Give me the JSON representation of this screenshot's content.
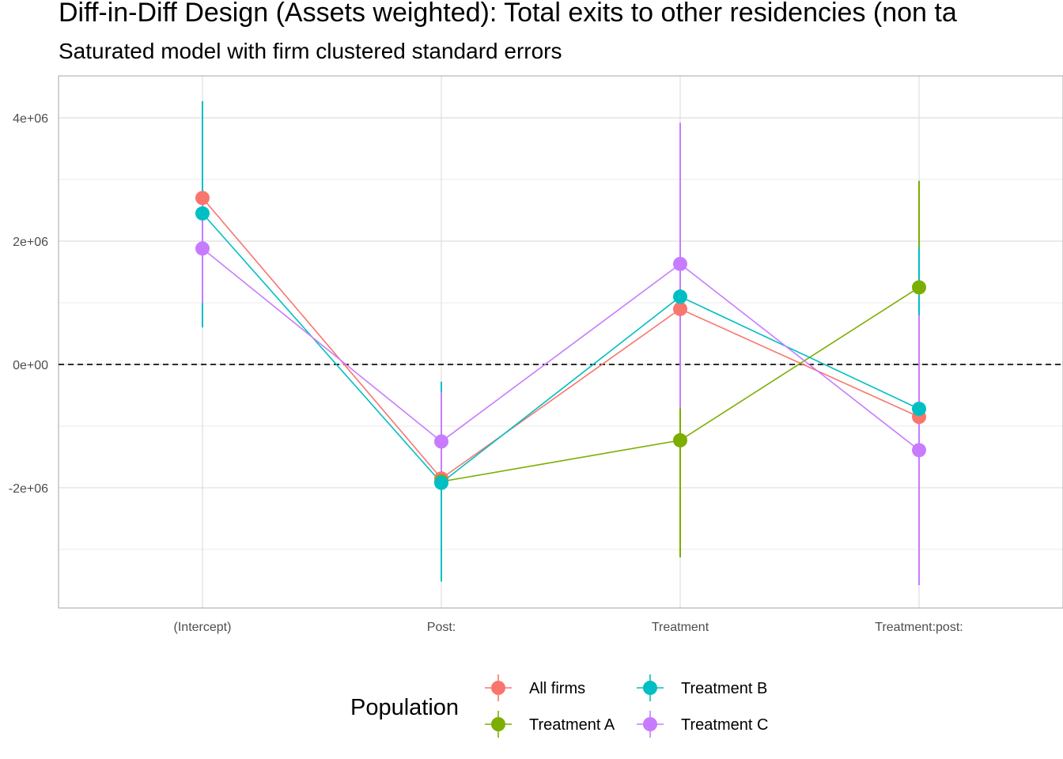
{
  "chart_data": {
    "type": "scatter",
    "title": "Diff-in-Diff Design (Assets weighted): Total exits to other residencies (non ta",
    "subtitle": "Saturated model with firm clustered standard errors",
    "xlabel": "",
    "ylabel": "",
    "categories": [
      "(Intercept)",
      "Post:",
      "Treatment",
      "Treatment:post:"
    ],
    "y_ticks": [
      -2000000,
      0,
      2000000,
      4000000
    ],
    "y_tick_labels": [
      "-2e+06",
      "0e+00",
      "2e+06",
      "4e+06"
    ],
    "ylim": [
      -3950000,
      4680000
    ],
    "reference_line": {
      "y": 0,
      "style": "dashed"
    },
    "grid": true,
    "legend": {
      "title": "Population",
      "position": "bottom"
    },
    "series": [
      {
        "name": "All firms",
        "color": "#F8766D",
        "values": [
          2700000,
          -1850000,
          900000,
          -850000
        ],
        "lower": [
          null,
          null,
          null,
          null
        ],
        "upper": [
          null,
          null,
          null,
          null
        ]
      },
      {
        "name": "Treatment A",
        "color": "#7CAE00",
        "values": [
          null,
          -1900000,
          -1230000,
          1250000
        ],
        "lower": [
          null,
          null,
          -3130000,
          -490000
        ],
        "upper": [
          null,
          null,
          -650000,
          2980000
        ]
      },
      {
        "name": "Treatment B",
        "color": "#00BFC4",
        "values": [
          2450000,
          -1920000,
          1100000,
          -720000
        ],
        "lower": [
          600000,
          -3520000,
          -400000,
          -800000
        ],
        "upper": [
          4270000,
          -280000,
          1500000,
          1900000
        ]
      },
      {
        "name": "Treatment C",
        "color": "#C77CFF",
        "values": [
          1880000,
          -1250000,
          1630000,
          -1390000
        ],
        "lower": [
          1000000,
          -1900000,
          -700000,
          -3580000
        ],
        "upper": [
          2800000,
          -450000,
          3920000,
          800000
        ]
      }
    ]
  }
}
